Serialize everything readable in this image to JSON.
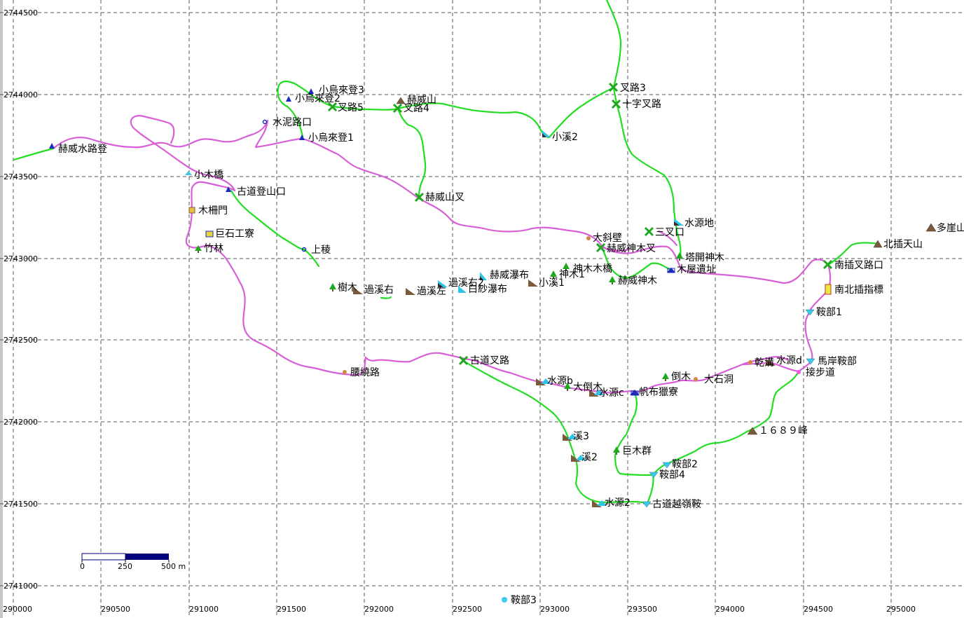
{
  "map": {
    "x_ticks": [
      "290000",
      "290500",
      "291000",
      "291500",
      "292000",
      "292500",
      "293000",
      "293500",
      "294000",
      "294500",
      "295000"
    ],
    "y_ticks": [
      "2744500",
      "2744000",
      "2743500",
      "2743000",
      "2742500",
      "2742000",
      "2741500",
      "2741000"
    ],
    "scale_bar": {
      "labels": [
        "0",
        "250",
        "500 m"
      ]
    },
    "colors": {
      "route_magenta": "#d75fd7",
      "route_green": "#22dd22",
      "grid": "#555555"
    },
    "waypoints": [
      {
        "id": "w1",
        "label": "赫威水路登",
        "icon": "trailhead-icon"
      },
      {
        "id": "w2",
        "label": "小木橋",
        "icon": "water-icon"
      },
      {
        "id": "w3",
        "label": "古道登山口",
        "icon": "trailhead-icon"
      },
      {
        "id": "w4",
        "label": "木柵門",
        "icon": "gate-icon"
      },
      {
        "id": "w5",
        "label": "巨石工寮",
        "icon": "hut-icon"
      },
      {
        "id": "w6",
        "label": "竹林",
        "icon": "tree-icon"
      },
      {
        "id": "w7",
        "label": "上稜",
        "icon": "point-icon"
      },
      {
        "id": "w8",
        "label": "水泥路口",
        "icon": "point-icon"
      },
      {
        "id": "w9",
        "label": "小烏來登3",
        "icon": "trailhead-icon"
      },
      {
        "id": "w10",
        "label": "小烏來登2",
        "icon": "trailhead-icon"
      },
      {
        "id": "w11",
        "label": "小烏來登1",
        "icon": "trailhead-icon"
      },
      {
        "id": "w12",
        "label": "叉路5",
        "icon": "junction-icon"
      },
      {
        "id": "w13",
        "label": "赫威山",
        "icon": "peak-icon"
      },
      {
        "id": "w14",
        "label": "叉路4",
        "icon": "junction-icon"
      },
      {
        "id": "w15",
        "label": "小溪2",
        "icon": "stream-icon"
      },
      {
        "id": "w16",
        "label": "叉路3",
        "icon": "junction-icon"
      },
      {
        "id": "w17",
        "label": "十字叉路",
        "icon": "junction-icon"
      },
      {
        "id": "w18",
        "label": "赫威山叉",
        "icon": "junction-icon"
      },
      {
        "id": "w19",
        "label": "水源地",
        "icon": "water-source-icon"
      },
      {
        "id": "w20",
        "label": "三叉口",
        "icon": "junction-icon"
      },
      {
        "id": "w21",
        "label": "大斜壁",
        "icon": "cliff-icon"
      },
      {
        "id": "w22",
        "label": "赫威神木叉",
        "icon": "junction-icon"
      },
      {
        "id": "w23",
        "label": "塔開神木",
        "icon": "tree-icon"
      },
      {
        "id": "w24",
        "label": "木屋遺址",
        "icon": "ruin-icon"
      },
      {
        "id": "w25",
        "label": "神木木橋",
        "icon": "tree-icon"
      },
      {
        "id": "w26",
        "label": "神木1",
        "icon": "tree-icon"
      },
      {
        "id": "w27",
        "label": "赫威神木",
        "icon": "tree-icon"
      },
      {
        "id": "w28",
        "label": "赫威瀑布",
        "icon": "waterfall-icon"
      },
      {
        "id": "w29",
        "label": "小溪1",
        "icon": "stream-icon"
      },
      {
        "id": "w30",
        "label": "過溪右2",
        "icon": "stream-icon"
      },
      {
        "id": "w31",
        "label": "白紗瀑布",
        "icon": "waterfall-icon"
      },
      {
        "id": "w32",
        "label": "過溪左",
        "icon": "stream-icon"
      },
      {
        "id": "w33",
        "label": "過溪右",
        "icon": "stream-icon"
      },
      {
        "id": "w34",
        "label": "樹木",
        "icon": "tree-icon"
      },
      {
        "id": "w35",
        "label": "多崖山",
        "icon": "peak-icon"
      },
      {
        "id": "w36",
        "label": "北插天山",
        "icon": "peak-icon"
      },
      {
        "id": "w37",
        "label": "南插叉路口",
        "icon": "junction-icon"
      },
      {
        "id": "w38",
        "label": "南北插指標",
        "icon": "signpost-icon"
      },
      {
        "id": "w39",
        "label": "鞍部1",
        "icon": "saddle-icon"
      },
      {
        "id": "w40",
        "label": "馬岸鞍部",
        "icon": "saddle-icon"
      },
      {
        "id": "w41",
        "label": "接步道",
        "icon": "point-icon"
      },
      {
        "id": "w42",
        "label": "水源d",
        "icon": "water-source-icon"
      },
      {
        "id": "w43",
        "label": "乾溝",
        "icon": "cliff-icon"
      },
      {
        "id": "w44",
        "label": "大石洞",
        "icon": "cave-icon"
      },
      {
        "id": "w45",
        "label": "倒木",
        "icon": "tree-icon"
      },
      {
        "id": "w46",
        "label": "帆布獵寮",
        "icon": "hut-icon"
      },
      {
        "id": "w47",
        "label": "水源c",
        "icon": "water-source-icon"
      },
      {
        "id": "w48",
        "label": "大倒木",
        "icon": "tree-icon"
      },
      {
        "id": "w49",
        "label": "水源b",
        "icon": "water-source-icon"
      },
      {
        "id": "w50",
        "label": "古道叉路",
        "icon": "junction-icon"
      },
      {
        "id": "w51",
        "label": "腰繞路",
        "icon": "cliff-icon"
      },
      {
        "id": "w52",
        "label": "１６８９峰",
        "icon": "peak-icon"
      },
      {
        "id": "w53",
        "label": "溪3",
        "icon": "stream-icon"
      },
      {
        "id": "w54",
        "label": "溪2",
        "icon": "stream-icon"
      },
      {
        "id": "w55",
        "label": "巨木群",
        "icon": "tree-icon"
      },
      {
        "id": "w56",
        "label": "鞍部2",
        "icon": "saddle-icon"
      },
      {
        "id": "w57",
        "label": "鞍部4",
        "icon": "saddle-icon"
      },
      {
        "id": "w58",
        "label": "水源2",
        "icon": "water-source-icon"
      },
      {
        "id": "w59",
        "label": "古道越嶺鞍",
        "icon": "saddle-icon"
      },
      {
        "id": "w60",
        "label": "鞍部3",
        "icon": "point-icon"
      }
    ]
  }
}
